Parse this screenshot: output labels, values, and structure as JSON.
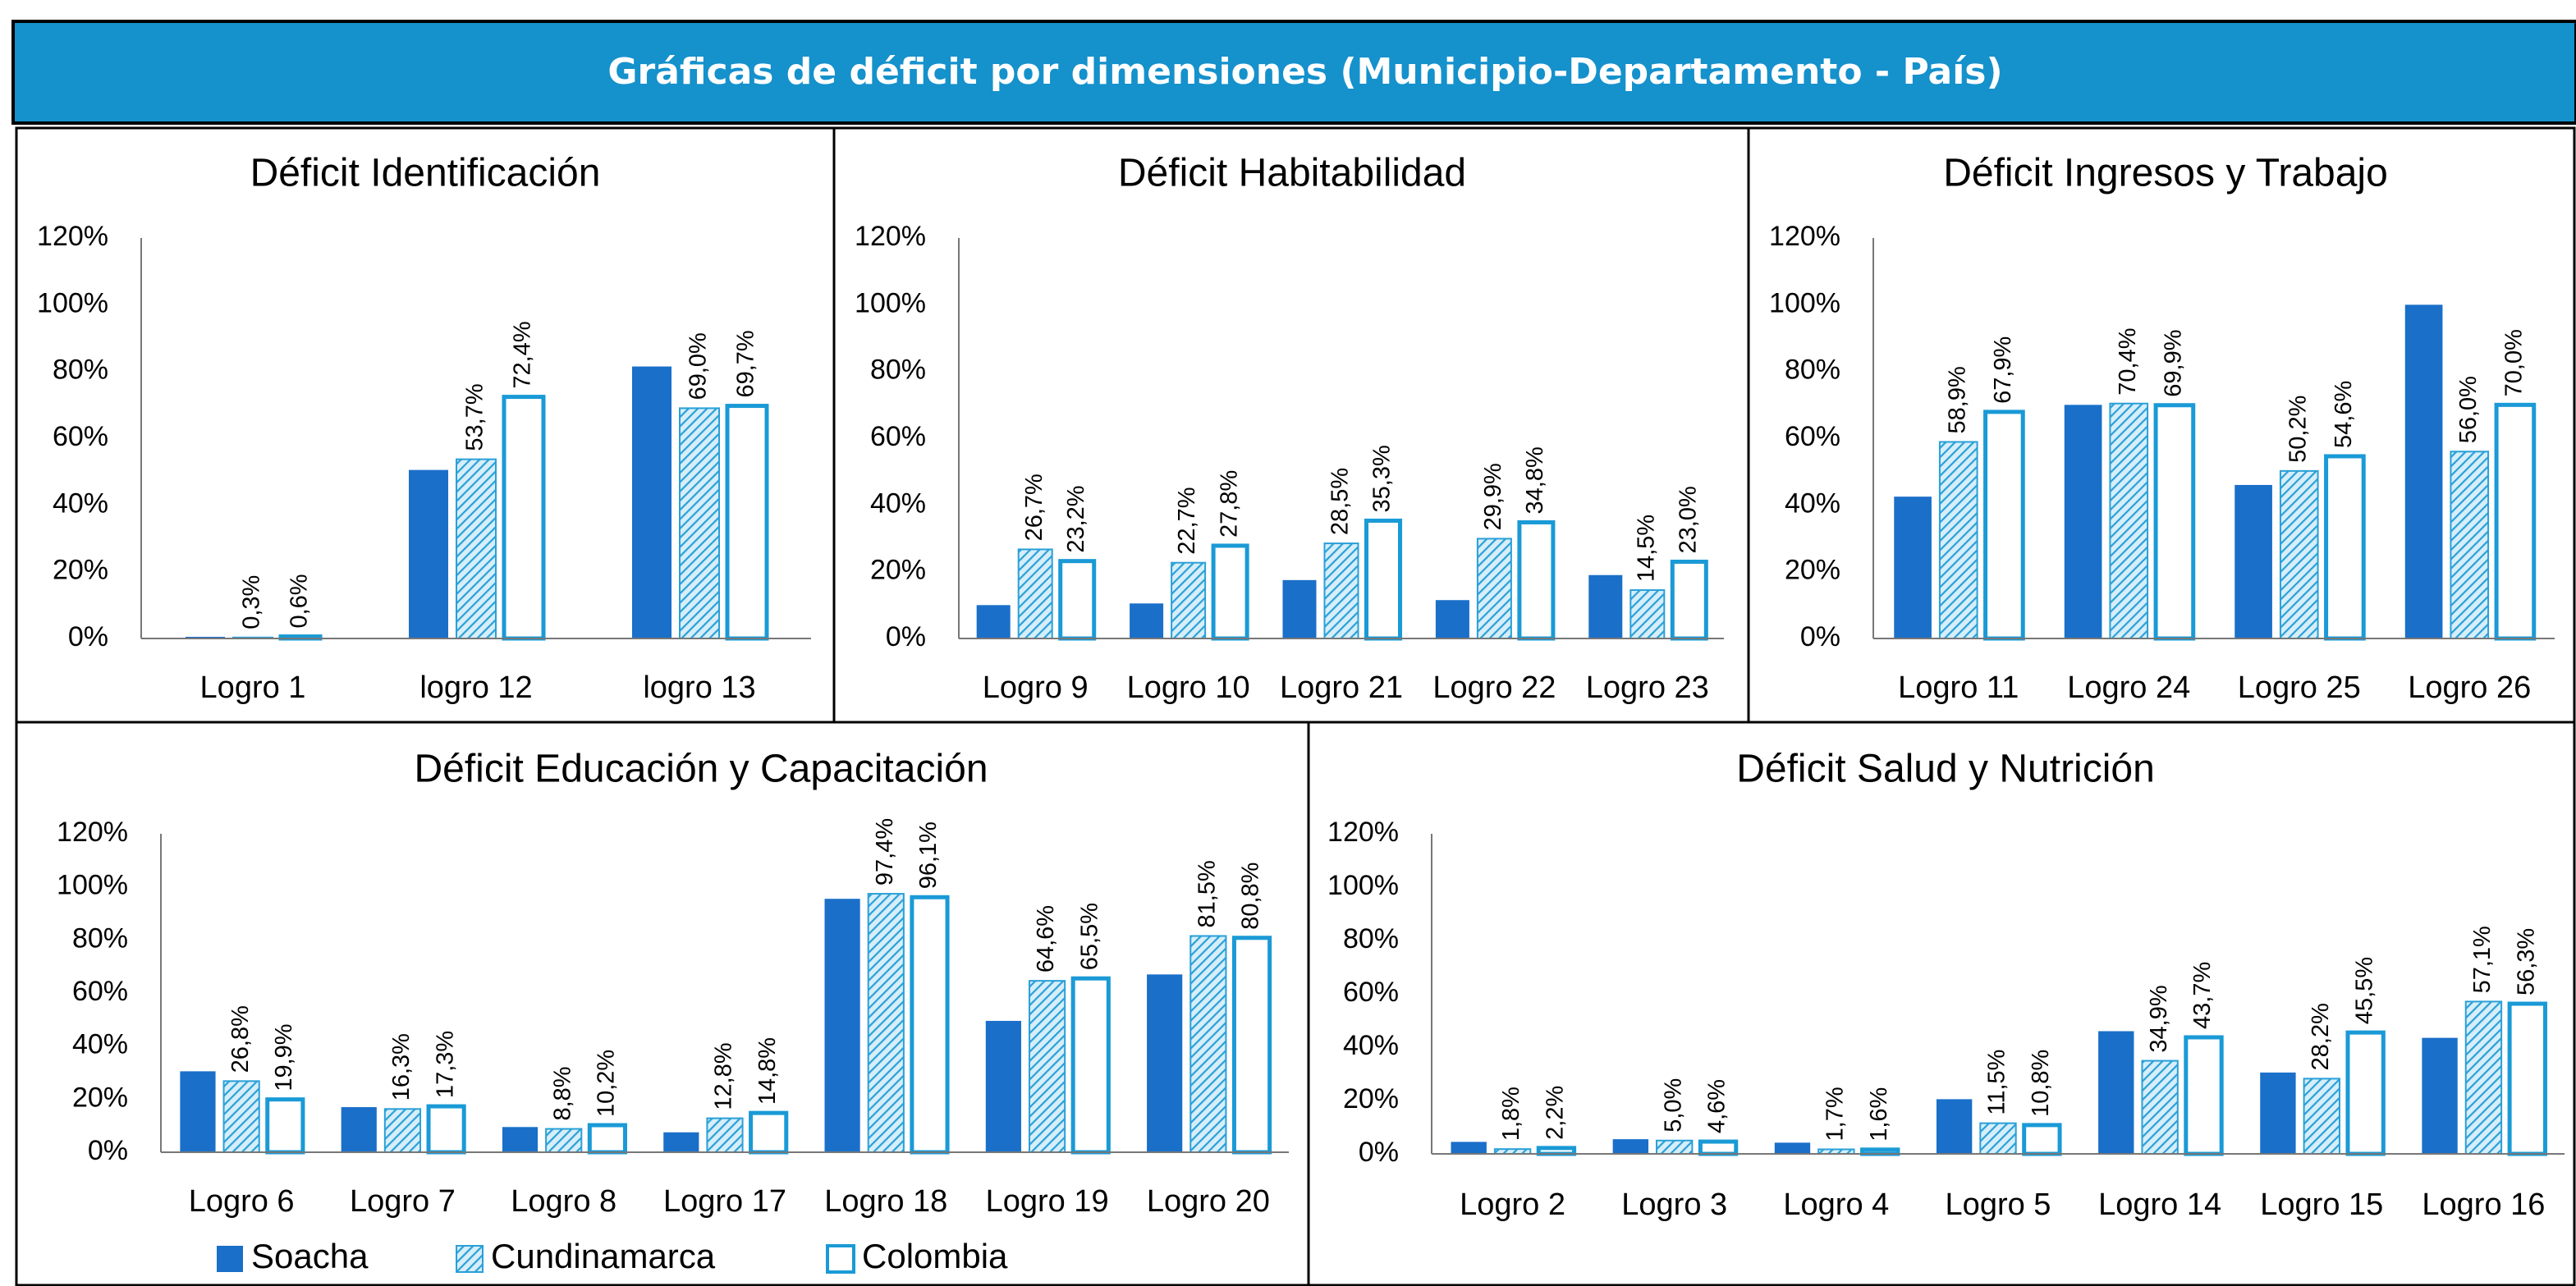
{
  "header": {
    "title": "Gráficas de déficit por dimensiones (Municipio-Departamento - País)"
  },
  "chart_data": [
    {
      "type": "bar",
      "title": "Déficit Identificación",
      "categories": [
        "Logro 1",
        "logro 12",
        "logro 13"
      ],
      "series": [
        {
          "name": "Soacha",
          "color": "#1a6fc9",
          "values": [
            0.5,
            50.5,
            81.5
          ]
        },
        {
          "name": "Cundinamarca",
          "color": "#2aa0d8",
          "values": [
            0.3,
            53.7,
            69.0
          ],
          "value_labels": [
            "0,3%",
            "53,7%",
            "69,0%"
          ]
        },
        {
          "name": "Colombia",
          "color": "#1a9ad6",
          "values": [
            0.6,
            72.4,
            69.7
          ],
          "value_labels": [
            "0,6%",
            "72,4%",
            "69,7%"
          ]
        }
      ],
      "ylim": [
        0,
        120
      ],
      "yticks": [
        {
          "value": 0,
          "label": "0%"
        },
        {
          "value": 20,
          "label": "20%"
        },
        {
          "value": 40,
          "label": "40%"
        },
        {
          "value": 60,
          "label": "60%"
        },
        {
          "value": 80,
          "label": "80%"
        },
        {
          "value": 100,
          "label": "100%"
        },
        {
          "value": 120,
          "label": "120%"
        }
      ]
    },
    {
      "type": "bar",
      "title": "Déficit Habitabilidad",
      "categories": [
        "Logro 9",
        "Logro 10",
        "Logro 21",
        "Logro 22",
        "Logro 23"
      ],
      "series": [
        {
          "name": "Soacha",
          "color": "#1a6fc9",
          "values": [
            10,
            10.5,
            17.5,
            11.5,
            19
          ]
        },
        {
          "name": "Cundinamarca",
          "color": "#2aa0d8",
          "values": [
            26.7,
            22.7,
            28.5,
            29.9,
            14.5
          ],
          "value_labels": [
            "26,7%",
            "22,7%",
            "28,5%",
            "29,9%",
            "14,5%"
          ]
        },
        {
          "name": "Colombia",
          "color": "#1a9ad6",
          "values": [
            23.2,
            27.8,
            35.3,
            34.8,
            23.0
          ],
          "value_labels": [
            "23,2%",
            "27,8%",
            "35,3%",
            "34,8%",
            "23,0%"
          ]
        }
      ],
      "ylim": [
        0,
        120
      ],
      "yticks": [
        {
          "value": 0,
          "label": "0%"
        },
        {
          "value": 20,
          "label": "20%"
        },
        {
          "value": 40,
          "label": "40%"
        },
        {
          "value": 60,
          "label": "60%"
        },
        {
          "value": 80,
          "label": "80%"
        },
        {
          "value": 100,
          "label": "100%"
        },
        {
          "value": 120,
          "label": "120%"
        }
      ]
    },
    {
      "type": "bar",
      "title": "Déficit Ingresos y Trabajo",
      "categories": [
        "Logro 11",
        "Logro 24",
        "Logro 25",
        "Logro 26"
      ],
      "series": [
        {
          "name": "Soacha",
          "color": "#1a6fc9",
          "values": [
            42.5,
            70,
            46,
            100
          ]
        },
        {
          "name": "Cundinamarca",
          "color": "#2aa0d8",
          "values": [
            58.9,
            70.4,
            50.2,
            56.0
          ],
          "value_labels": [
            "58,9%",
            "70,4%",
            "50,2%",
            "56,0%"
          ]
        },
        {
          "name": "Colombia",
          "color": "#1a9ad6",
          "values": [
            67.9,
            69.9,
            54.6,
            70.0
          ],
          "value_labels": [
            "67,9%",
            "69,9%",
            "54,6%",
            "70,0%"
          ]
        }
      ],
      "ylim": [
        0,
        120
      ],
      "yticks": [
        {
          "value": 0,
          "label": "0%"
        },
        {
          "value": 20,
          "label": "20%"
        },
        {
          "value": 40,
          "label": "40%"
        },
        {
          "value": 60,
          "label": "60%"
        },
        {
          "value": 80,
          "label": "80%"
        },
        {
          "value": 100,
          "label": "100%"
        },
        {
          "value": 120,
          "label": "120%"
        }
      ]
    },
    {
      "type": "bar",
      "title": "Déficit Educación y Capacitación",
      "categories": [
        "Logro 6",
        "Logro 7",
        "Logro 8",
        "Logro 17",
        "Logro 18",
        "Logro 19",
        "Logro 20"
      ],
      "series": [
        {
          "name": "Soacha",
          "color": "#1a6fc9",
          "values": [
            30.5,
            17,
            9.5,
            7.5,
            95.5,
            49.5,
            67
          ]
        },
        {
          "name": "Cundinamarca",
          "color": "#2aa0d8",
          "values": [
            26.8,
            16.3,
            8.8,
            12.8,
            97.4,
            64.6,
            81.5
          ],
          "value_labels": [
            "26,8%",
            "16,3%",
            "8,8%",
            "12,8%",
            "97,4%",
            "64,6%",
            "81,5%"
          ]
        },
        {
          "name": "Colombia",
          "color": "#1a9ad6",
          "values": [
            19.9,
            17.3,
            10.2,
            14.8,
            96.1,
            65.5,
            80.8
          ],
          "value_labels": [
            "19,9%",
            "17,3%",
            "10,2%",
            "14,8%",
            "96,1%",
            "65,5%",
            "80,8%"
          ]
        }
      ],
      "ylim": [
        0,
        120
      ],
      "yticks": [
        {
          "value": 0,
          "label": "0%"
        },
        {
          "value": 20,
          "label": "20%"
        },
        {
          "value": 40,
          "label": "40%"
        },
        {
          "value": 60,
          "label": "60%"
        },
        {
          "value": 80,
          "label": "80%"
        },
        {
          "value": 100,
          "label": "100%"
        },
        {
          "value": 120,
          "label": "120%"
        }
      ],
      "legend": "bottom"
    },
    {
      "type": "bar",
      "title": "Déficit Salud y Nutrición",
      "categories": [
        "Logro 2",
        "Logro 3",
        "Logro 4",
        "Logro 5",
        "Logro 14",
        "Logro 15",
        "Logro 16"
      ],
      "series": [
        {
          "name": "Soacha",
          "color": "#1a6fc9",
          "values": [
            4.5,
            5.5,
            4.2,
            20.5,
            46,
            30.5,
            43.5
          ]
        },
        {
          "name": "Cundinamarca",
          "color": "#2aa0d8",
          "values": [
            1.8,
            5.0,
            1.7,
            11.5,
            34.9,
            28.2,
            57.1
          ],
          "value_labels": [
            "1,8%",
            "5,0%",
            "1,7%",
            "11,5%",
            "34,9%",
            "28,2%",
            "57,1%"
          ]
        },
        {
          "name": "Colombia",
          "color": "#1a9ad6",
          "values": [
            2.2,
            4.6,
            1.6,
            10.8,
            43.7,
            45.5,
            56.3
          ],
          "value_labels": [
            "2,2%",
            "4,6%",
            "1,6%",
            "10,8%",
            "43,7%",
            "45,5%",
            "56,3%"
          ]
        }
      ],
      "ylim": [
        0,
        120
      ],
      "yticks": [
        {
          "value": 0,
          "label": "0%"
        },
        {
          "value": 20,
          "label": "20%"
        },
        {
          "value": 40,
          "label": "40%"
        },
        {
          "value": 60,
          "label": "60%"
        },
        {
          "value": 80,
          "label": "80%"
        },
        {
          "value": 100,
          "label": "100%"
        },
        {
          "value": 120,
          "label": "120%"
        }
      ]
    }
  ]
}
